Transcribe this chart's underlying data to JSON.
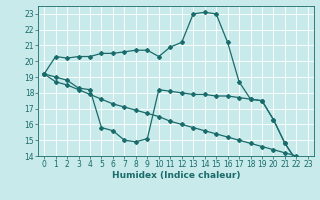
{
  "xlabel": "Humidex (Indice chaleur)",
  "xlim": [
    -0.5,
    23.5
  ],
  "ylim": [
    14,
    23.5
  ],
  "xticks": [
    0,
    1,
    2,
    3,
    4,
    5,
    6,
    7,
    8,
    9,
    10,
    11,
    12,
    13,
    14,
    15,
    16,
    17,
    18,
    19,
    20,
    21,
    22,
    23
  ],
  "yticks": [
    14,
    15,
    16,
    17,
    18,
    19,
    20,
    21,
    22,
    23
  ],
  "bg_color": "#c8eaea",
  "line_color": "#1a6b6b",
  "grid_color": "#e8e8e8",
  "line1_x": [
    0,
    1,
    2,
    3,
    4,
    5,
    6,
    7,
    8,
    9,
    10,
    11,
    12,
    13,
    14,
    15,
    16,
    17,
    18,
    19,
    20,
    21,
    22,
    23
  ],
  "line1_y": [
    19.2,
    20.3,
    20.2,
    20.3,
    20.3,
    20.5,
    20.5,
    20.6,
    20.7,
    20.7,
    20.3,
    20.9,
    21.2,
    23.0,
    23.1,
    23.0,
    21.2,
    18.7,
    17.6,
    17.5,
    16.3,
    14.8,
    13.7,
    13.5
  ],
  "line2_x": [
    0,
    1,
    2,
    3,
    4,
    5,
    6,
    7,
    8,
    9,
    10,
    11,
    12,
    13,
    14,
    15,
    16,
    17,
    18,
    19,
    20,
    21,
    22,
    23
  ],
  "line2_y": [
    19.2,
    19.0,
    18.8,
    18.3,
    18.2,
    15.8,
    15.6,
    15.0,
    14.9,
    15.1,
    18.2,
    18.1,
    18.0,
    17.9,
    17.9,
    17.8,
    17.8,
    17.7,
    17.6,
    17.5,
    16.3,
    14.8,
    13.7,
    13.5
  ],
  "line3_x": [
    0,
    1,
    2,
    3,
    4,
    5,
    6,
    7,
    8,
    9,
    10,
    11,
    12,
    13,
    14,
    15,
    16,
    17,
    18,
    19,
    20,
    21,
    22,
    23
  ],
  "line3_y": [
    19.2,
    18.7,
    18.5,
    18.2,
    17.9,
    17.6,
    17.3,
    17.1,
    16.9,
    16.7,
    16.5,
    16.2,
    16.0,
    15.8,
    15.6,
    15.4,
    15.2,
    15.0,
    14.8,
    14.6,
    14.4,
    14.2,
    14.0,
    13.8
  ]
}
